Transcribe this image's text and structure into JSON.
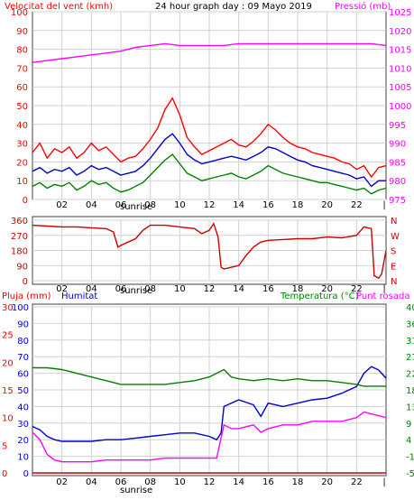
{
  "chart_data": [
    {
      "type": "line",
      "title": "24 hour graph day : 09 Mayo 2019",
      "left_label": "Velocitat del vent (kmh)",
      "right_label": "Pressió (mb)",
      "left_ticks": [
        "0",
        "10",
        "20",
        "30",
        "40",
        "50",
        "60",
        "70",
        "80",
        "90",
        "100"
      ],
      "right_ticks": [
        "975",
        "980",
        "985",
        "990",
        "995",
        "1000",
        "1005",
        "1010",
        "1015",
        "1020",
        "1025"
      ],
      "x_ticks": [
        "02",
        "04",
        "06",
        "08",
        "10",
        "12",
        "14",
        "16",
        "18",
        "20",
        "22"
      ],
      "ylim_left": [
        0,
        100
      ],
      "ylim_right": [
        975,
        1025
      ],
      "xlim": [
        0,
        24
      ],
      "sunrise_label": "sunrise",
      "end_label": "|",
      "series": [
        {
          "color": "#ff0000",
          "x": [
            0,
            0.5,
            1,
            1.5,
            2,
            2.5,
            3,
            3.5,
            4,
            4.5,
            5,
            5.5,
            6,
            6.5,
            7,
            7.5,
            8,
            8.5,
            9,
            9.5,
            10,
            10.5,
            11,
            11.5,
            12,
            12.5,
            13,
            13.5,
            14,
            14.5,
            15,
            15.5,
            16,
            16.5,
            17,
            17.5,
            18,
            18.5,
            19,
            19.5,
            20,
            20.5,
            21,
            21.5,
            22,
            22.5,
            23,
            23.5,
            24
          ],
          "y": [
            25,
            30,
            22,
            27,
            25,
            28,
            22,
            25,
            30,
            26,
            28,
            24,
            20,
            22,
            23,
            27,
            32,
            38,
            48,
            54,
            45,
            33,
            28,
            24,
            26,
            28,
            30,
            32,
            29,
            28,
            31,
            35,
            40,
            37,
            33,
            30,
            28,
            27,
            25,
            24,
            23,
            22,
            20,
            19,
            16,
            18,
            12,
            17,
            18
          ]
        },
        {
          "color": "#0000cc",
          "x": [
            0,
            0.5,
            1,
            1.5,
            2,
            2.5,
            3,
            3.5,
            4,
            4.5,
            5,
            5.5,
            6,
            6.5,
            7,
            7.5,
            8,
            8.5,
            9,
            9.5,
            10,
            10.5,
            11,
            11.5,
            12,
            12.5,
            13,
            13.5,
            14,
            14.5,
            15,
            15.5,
            16,
            16.5,
            17,
            17.5,
            18,
            18.5,
            19,
            19.5,
            20,
            20.5,
            21,
            21.5,
            22,
            22.5,
            23,
            23.5,
            24
          ],
          "y": [
            15,
            17,
            14,
            16,
            15,
            17,
            13,
            15,
            18,
            16,
            17,
            15,
            13,
            14,
            15,
            18,
            22,
            27,
            32,
            35,
            30,
            24,
            21,
            19,
            20,
            21,
            22,
            23,
            22,
            21,
            23,
            25,
            28,
            27,
            25,
            23,
            21,
            20,
            18,
            17,
            16,
            15,
            14,
            13,
            11,
            12,
            7,
            10,
            10
          ]
        },
        {
          "color": "#008000",
          "x": [
            0,
            0.5,
            1,
            1.5,
            2,
            2.5,
            3,
            3.5,
            4,
            4.5,
            5,
            5.5,
            6,
            6.5,
            7,
            7.5,
            8,
            8.5,
            9,
            9.5,
            10,
            10.5,
            11,
            11.5,
            12,
            12.5,
            13,
            13.5,
            14,
            14.5,
            15,
            15.5,
            16,
            16.5,
            17,
            17.5,
            18,
            18.5,
            19,
            19.5,
            20,
            20.5,
            21,
            21.5,
            22,
            22.5,
            23,
            23.5,
            24
          ],
          "y": [
            7,
            9,
            6,
            8,
            7,
            9,
            5,
            7,
            10,
            8,
            9,
            6,
            4,
            5,
            7,
            9,
            13,
            17,
            21,
            24,
            19,
            14,
            12,
            10,
            11,
            12,
            13,
            14,
            12,
            11,
            13,
            15,
            18,
            16,
            14,
            13,
            12,
            11,
            10,
            9,
            9,
            8,
            7,
            6,
            5,
            6,
            3,
            5,
            6
          ]
        },
        {
          "color": "#ff00ff",
          "axis": "right",
          "x": [
            0,
            1,
            2,
            3,
            4,
            5,
            6,
            7,
            8,
            9,
            10,
            11,
            12,
            13,
            14,
            15,
            16,
            17,
            18,
            19,
            20,
            21,
            22,
            23,
            24
          ],
          "y": [
            1011.5,
            1012,
            1012.5,
            1013,
            1013.5,
            1014,
            1014.5,
            1015.5,
            1016,
            1016.5,
            1016,
            1016,
            1016,
            1016,
            1016.5,
            1016.5,
            1016.5,
            1016.5,
            1016.5,
            1016.5,
            1016.5,
            1016.5,
            1016.5,
            1016.5,
            1016
          ]
        }
      ]
    },
    {
      "type": "line",
      "left_ticks": [
        "0",
        "90",
        "180",
        "270",
        "360"
      ],
      "right_ticks": [
        "N",
        "E",
        "S",
        "W",
        "N"
      ],
      "ylim": [
        0,
        360
      ],
      "xlim": [
        0,
        24
      ],
      "x_ticks": [
        "02",
        "04",
        "06",
        "08",
        "10",
        "12",
        "14",
        "16",
        "18",
        "20",
        "22"
      ],
      "sunrise_label": "sunrise",
      "end_label": "|",
      "series": [
        {
          "color": "#cc0000",
          "x": [
            0,
            1,
            2,
            3,
            4,
            5,
            5.5,
            5.8,
            6,
            6.5,
            7,
            7.5,
            8,
            9,
            10,
            11,
            11.5,
            12,
            12.3,
            12.6,
            12.8,
            13,
            13.5,
            14,
            14.5,
            15,
            15.5,
            16,
            17,
            18,
            19,
            20,
            21,
            22,
            22.5,
            23,
            23.2,
            23.5,
            23.7,
            24
          ],
          "y": [
            330,
            325,
            320,
            320,
            315,
            310,
            290,
            200,
            210,
            230,
            250,
            300,
            330,
            330,
            320,
            310,
            280,
            300,
            340,
            260,
            80,
            70,
            80,
            90,
            150,
            200,
            230,
            240,
            245,
            250,
            250,
            260,
            255,
            270,
            320,
            310,
            30,
            15,
            40,
            180
          ]
        }
      ]
    },
    {
      "type": "line",
      "left_label": "Pluja (mm)",
      "humid_label": "Humitat",
      "right_label": "Temperatura (°C)",
      "dew_label": "Punt rosada",
      "rain_ticks": [
        "0",
        "5",
        "10",
        "15",
        "20",
        "25",
        "30"
      ],
      "humid_ticks": [
        "0",
        "10",
        "20",
        "30",
        "40",
        "50",
        "60",
        "70",
        "80",
        "90",
        "100"
      ],
      "temp_ticks": [
        "-5",
        "-1",
        "4",
        "9",
        "13",
        "18",
        "22",
        "27",
        "31",
        "36",
        "40"
      ],
      "rain_lim": [
        0,
        30
      ],
      "humid_lim": [
        0,
        100
      ],
      "temp_lim": [
        -5,
        40
      ],
      "xlim": [
        0,
        24
      ],
      "x_ticks": [
        "02",
        "04",
        "06",
        "08",
        "10",
        "12",
        "14",
        "16",
        "18",
        "20",
        "22"
      ],
      "sunrise_label": "sunrise",
      "end_label": "|",
      "series": [
        {
          "color": "#0000cc",
          "axis": "humid",
          "x": [
            0,
            0.5,
            1,
            1.5,
            2,
            3,
            4,
            5,
            6,
            7,
            8,
            9,
            10,
            11,
            12,
            12.5,
            12.8,
            13,
            13.5,
            14,
            15,
            15.5,
            16,
            17,
            18,
            19,
            20,
            21,
            22,
            22.5,
            23,
            23.5,
            24
          ],
          "y": [
            28,
            26,
            22,
            20,
            19,
            19,
            19,
            20,
            20,
            21,
            22,
            23,
            24,
            24,
            22,
            20,
            24,
            40,
            42,
            44,
            41,
            34,
            42,
            40,
            42,
            44,
            45,
            48,
            52,
            60,
            64,
            62,
            57
          ]
        },
        {
          "color": "#008000",
          "axis": "temp",
          "x": [
            0,
            1,
            2,
            3,
            4,
            5,
            6,
            7,
            8,
            9,
            10,
            11,
            12,
            12.5,
            13,
            13.5,
            14,
            15,
            16,
            17,
            18,
            19,
            20,
            21,
            22,
            22.5,
            23,
            24
          ],
          "y": [
            23.5,
            23.5,
            23,
            22,
            21,
            20,
            19,
            19,
            19,
            19,
            19.5,
            20,
            21,
            22,
            23,
            21,
            20.5,
            20,
            20.5,
            20,
            20.5,
            20,
            20,
            19.5,
            19,
            18.5,
            18.5,
            18.5
          ]
        },
        {
          "color": "#ff00ff",
          "axis": "temp",
          "x": [
            0,
            0.5,
            1,
            1.5,
            2,
            3,
            4,
            5,
            6,
            7,
            8,
            9,
            10,
            11,
            12,
            12.5,
            13,
            13.5,
            14,
            15,
            15.5,
            16,
            17,
            18,
            19,
            20,
            21,
            22,
            22.5,
            23,
            24
          ],
          "y": [
            6,
            4,
            0,
            -1.5,
            -2,
            -2,
            -2,
            -1.5,
            -1.5,
            -1.5,
            -1.5,
            -1,
            -1,
            -1,
            -1,
            -1,
            8,
            7,
            7,
            8,
            6,
            7,
            8,
            8,
            9,
            9,
            9,
            10,
            11.5,
            11,
            10
          ]
        },
        {
          "color": "#cc0000",
          "axis": "rain",
          "x": [
            0,
            24
          ],
          "y": [
            0,
            0
          ]
        }
      ]
    }
  ]
}
